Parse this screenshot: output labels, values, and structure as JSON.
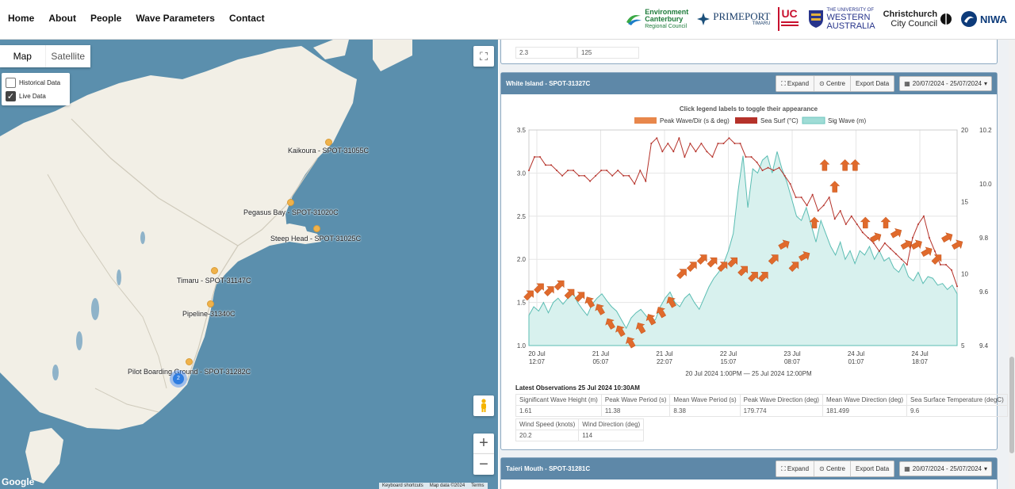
{
  "nav": [
    "Home",
    "About",
    "People",
    "Wave Parameters",
    "Contact"
  ],
  "logos": {
    "ecan": [
      "Environment",
      "Canterbury",
      "Regional Council"
    ],
    "primeport": [
      "PRIMEPORT",
      "TIMARU"
    ],
    "uc": [
      "UC"
    ],
    "uwa": [
      "THE UNIVERSITY OF",
      "WESTERN",
      "AUSTRALIA"
    ],
    "ccc": [
      "Christchurch",
      "City Council"
    ],
    "niwa": [
      "NIWA"
    ]
  },
  "map": {
    "types": [
      "Map",
      "Satellite"
    ],
    "layers": [
      {
        "label": "Historical Data",
        "checked": false
      },
      {
        "label": "Live Data",
        "checked": true
      }
    ],
    "stations": [
      "Kaikoura - SPOT-31055C",
      "Pegasus Bay - SPOT-31020C",
      "Steep Head - SPOT-31025C",
      "Timaru - SPOT-31147C",
      "Pipeline-31340C",
      "Pilot Boarding Ground - SPOT-31282C"
    ],
    "cluster_count": "2",
    "google": "Google",
    "footer": [
      "Keyboard shortcuts",
      "Map data ©2024",
      "Terms"
    ]
  },
  "prev_card": {
    "values": [
      "2.3",
      "125"
    ]
  },
  "card": {
    "title": "White Island - SPOT-31327C",
    "buttons": [
      "Expand",
      "Centre",
      "Export Data"
    ],
    "date_range": "20/07/2024 - 25/07/2024"
  },
  "chart_data": {
    "type": "line",
    "title": "Click legend labels to toggle their appearance",
    "legend": [
      "Peak Wave/Dir (s & deg)",
      "Sea Surf (°C)",
      "Sig Wave (m)"
    ],
    "legend_colors": [
      "#e8874b",
      "#b5322a",
      "#9fdcd6"
    ],
    "xlabel": "20 Jul 2024 1:00PM — 25 Jul 2024 12:00PM",
    "x_ticks": [
      [
        "20 Jul",
        "12:07"
      ],
      [
        "21 Jul",
        "05:07"
      ],
      [
        "21 Jul",
        "22:07"
      ],
      [
        "22 Jul",
        "15:07"
      ],
      [
        "23 Jul",
        "08:07"
      ],
      [
        "24 Jul",
        "01:07"
      ],
      [
        "24 Jul",
        "18:07"
      ]
    ],
    "y_left_ticks": [
      "3.5",
      "3.0",
      "2.5",
      "2.0",
      "1.5",
      "1.0"
    ],
    "y_mid_ticks": [
      "20",
      "15",
      "10",
      "5"
    ],
    "y_right_ticks": [
      "10.2",
      "10.0",
      "9.8",
      "9.6",
      "9.4"
    ],
    "ylim_left": [
      1.0,
      3.5
    ],
    "ylim_temp": [
      9.4,
      10.2
    ],
    "sig_wave": [
      1.35,
      1.45,
      1.4,
      1.5,
      1.38,
      1.5,
      1.55,
      1.48,
      1.55,
      1.62,
      1.5,
      1.42,
      1.35,
      1.48,
      1.55,
      1.6,
      1.52,
      1.45,
      1.4,
      1.3,
      1.2,
      1.32,
      1.38,
      1.42,
      1.35,
      1.28,
      1.3,
      1.45,
      1.55,
      1.62,
      1.5,
      1.45,
      1.55,
      1.6,
      1.5,
      1.42,
      1.55,
      1.68,
      1.78,
      1.85,
      1.95,
      2.1,
      2.3,
      2.8,
      3.2,
      2.6,
      3.05,
      3.0,
      3.15,
      3.2,
      3.0,
      3.25,
      3.05,
      2.9,
      2.7,
      2.5,
      2.45,
      2.6,
      2.4,
      2.2,
      2.45,
      2.3,
      2.15,
      2.05,
      2.2,
      2.0,
      2.1,
      1.95,
      2.1,
      2.05,
      2.15,
      2.0,
      2.1,
      1.98,
      2.02,
      1.9,
      1.85,
      1.95,
      1.8,
      1.75,
      1.85,
      1.72,
      1.8,
      1.78,
      1.7,
      1.72,
      1.65,
      1.7,
      1.6
    ],
    "sea_temp": [
      10.05,
      10.1,
      10.1,
      10.07,
      10.07,
      10.05,
      10.03,
      10.05,
      10.05,
      10.03,
      10.03,
      10.01,
      10.03,
      10.05,
      10.05,
      10.03,
      10.05,
      10.03,
      10.03,
      10.0,
      10.05,
      10.01,
      10.15,
      10.17,
      10.12,
      10.15,
      10.12,
      10.17,
      10.1,
      10.15,
      10.12,
      10.15,
      10.12,
      10.1,
      10.15,
      10.15,
      10.17,
      10.15,
      10.15,
      10.1,
      10.1,
      10.08,
      10.05,
      10.06,
      10.05,
      10.06,
      10.03,
      10.0,
      9.95,
      9.95,
      9.92,
      9.96,
      9.9,
      9.92,
      9.95,
      9.87,
      9.9,
      9.85,
      9.88,
      9.85,
      9.82,
      9.8,
      9.78,
      9.75,
      9.78,
      9.76,
      9.74,
      9.72,
      9.7,
      9.8,
      9.85,
      9.88,
      9.8,
      9.75,
      9.7,
      9.7,
      9.68,
      9.62
    ],
    "peak_wave_period": [
      8.5,
      9,
      8.8,
      9.2,
      8.6,
      8.4,
      8,
      7.5,
      6.5,
      6,
      5.2,
      6.2,
      6.8,
      7.3,
      8,
      10,
      10.5,
      11,
      10.8,
      10.5,
      10.8,
      10.2,
      9.8,
      9.8,
      11,
      12,
      10.5,
      11.2,
      13.5,
      17.5,
      16,
      17.5,
      17.5,
      13.5,
      12.5,
      13.5,
      12.8,
      12,
      12,
      11.5,
      11,
      12.5,
      12
    ],
    "obs_title": "Latest Observations 25 Jul 2024 10:30AM",
    "observations": [
      [
        [
          "Significant Wave Height (m)",
          "1.61"
        ],
        [
          "Peak Wave Period (s)",
          "11.38"
        ],
        [
          "Mean Wave Period (s)",
          "8.38"
        ],
        [
          "Peak Wave Direction (deg)",
          "179.774"
        ],
        [
          "Mean Wave Direction (deg)",
          "181.499"
        ],
        [
          "Sea Surface Temperature (degC)",
          "9.6"
        ]
      ],
      [
        [
          "Wind Speed (knots)",
          "20.2"
        ],
        [
          "Wind Direction (deg)",
          "114"
        ]
      ]
    ]
  },
  "card2": {
    "title": "Taieri Mouth - SPOT-31281C",
    "buttons": [
      "Expand",
      "Centre",
      "Export Data"
    ],
    "date_range": "20/07/2024 - 25/07/2024"
  }
}
